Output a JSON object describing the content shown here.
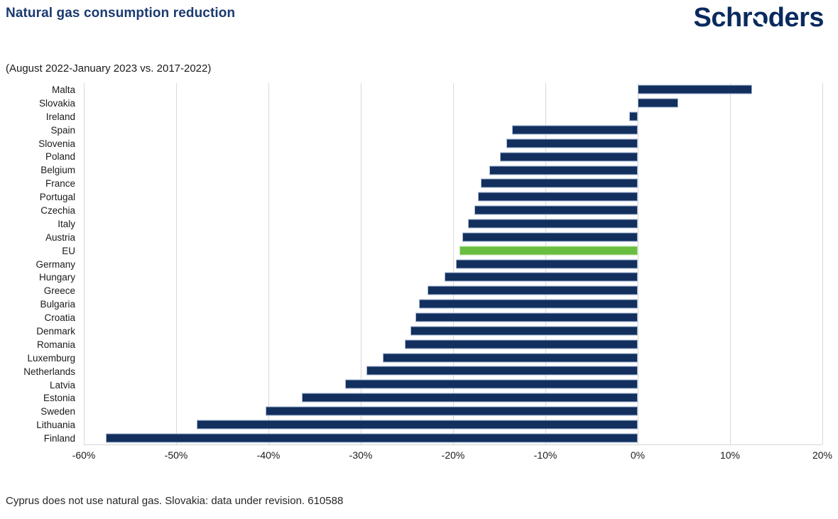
{
  "header": {
    "title": "Natural gas consumption reduction",
    "logo": "Schroders"
  },
  "subtitle": "(August 2022-January 2023 vs. 2017-2022)",
  "footnote": "Cyprus does not use natural gas. Slovakia: data under revision. 610588",
  "colors": {
    "bar": "#122f5d",
    "bar_border": "#a3b6d3",
    "highlight_bar": "#69be40",
    "title": "#1b3a70",
    "logo": "#0a2a5e",
    "gridline": "#d9d9d9",
    "text": "#1a1a1a"
  },
  "chart_data": {
    "type": "bar",
    "orientation": "horizontal",
    "title": "Natural gas consumption reduction",
    "subtitle": "(August 2022-January 2023 vs. 2017-2022)",
    "unit": "%",
    "xlim": [
      -60,
      20
    ],
    "xticks": [
      -60,
      -50,
      -40,
      -30,
      -20,
      -10,
      0,
      10,
      20
    ],
    "xtick_labels": [
      "-60%",
      "-50%",
      "-40%",
      "-30%",
      "-20%",
      "-10%",
      "0%",
      "10%",
      "20%"
    ],
    "grid": "vertical",
    "legend": "none",
    "highlight_category": "EU",
    "categories": [
      "Malta",
      "Slovakia",
      "Ireland",
      "Spain",
      "Slovenia",
      "Poland",
      "Belgium",
      "France",
      "Portugal",
      "Czechia",
      "Italy",
      "Austria",
      "EU",
      "Germany",
      "Hungary",
      "Greece",
      "Bulgaria",
      "Croatia",
      "Denmark",
      "Romania",
      "Luxemburg",
      "Netherlands",
      "Latvia",
      "Estonia",
      "Sweden",
      "Lithuania",
      "Finland"
    ],
    "values": [
      12.4,
      4.4,
      -0.9,
      -13.6,
      -14.2,
      -14.9,
      -16.1,
      -17.0,
      -17.3,
      -17.7,
      -18.4,
      -19.0,
      -19.3,
      -19.7,
      -20.9,
      -22.8,
      -23.7,
      -24.1,
      -24.6,
      -25.2,
      -27.6,
      -29.4,
      -31.7,
      -36.4,
      -40.3,
      -47.8,
      -57.6
    ]
  }
}
